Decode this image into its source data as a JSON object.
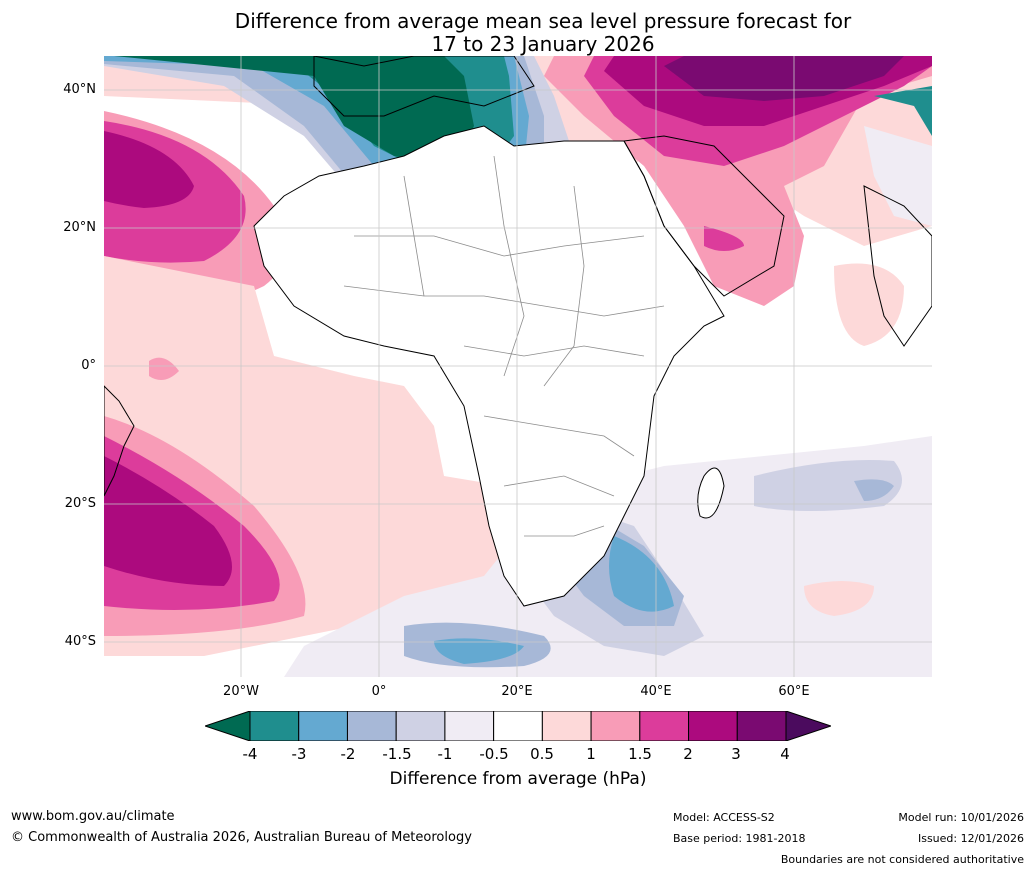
{
  "title": {
    "line1": "Difference from average mean sea level pressure forecast for",
    "line2": "17 to 23 January 2026"
  },
  "map": {
    "region": "Africa and surrounding oceans",
    "lat_labels": [
      "40°N",
      "20°N",
      "0°",
      "20°S",
      "40°S"
    ],
    "lon_labels": [
      "20°W",
      "0°",
      "20°E",
      "40°E",
      "60°E"
    ],
    "land_color": "#ffffff",
    "grid_color": "#c8c8c8",
    "coast_color": "#000000",
    "border_color": "#8c8c8c"
  },
  "colorbar": {
    "tick_labels": [
      "-4",
      "-3",
      "-2",
      "-1.5",
      "-1",
      "-0.5",
      "0.5",
      "1",
      "1.5",
      "2",
      "3",
      "4"
    ],
    "low_extend_color": "#006a52",
    "high_extend_color": "#4b0b5e",
    "colors": [
      "#1f8e8e",
      "#64a9d1",
      "#a7b8d7",
      "#cfd1e4",
      "#f0ecf4",
      "#ffffff",
      "#fdd9d9",
      "#f89cb7",
      "#dc3c9b",
      "#ac0a7e",
      "#7a0a71"
    ],
    "label": "Difference from average (hPa)"
  },
  "footer": {
    "website": "www.bom.gov.au/climate",
    "copyright": "© Commonwealth of Australia 2026, Australian Bureau of Meteorology",
    "model": "Model: ACCESS-S2",
    "base_period": "Base period: 1981-2018",
    "model_run": "Model run: 10/01/2026",
    "issued": "Issued: 12/01/2026",
    "disclaimer": "Boundaries are not considered authoritative"
  }
}
